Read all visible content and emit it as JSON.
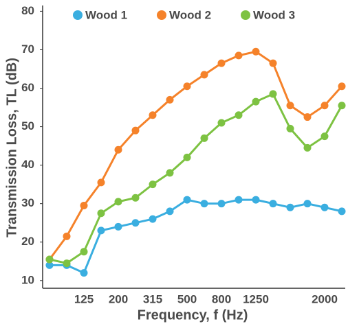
{
  "chart_data": {
    "type": "line",
    "xlabel": "Frequency, f (Hz)",
    "ylabel": "Transmission Loss, TL (dB)",
    "categories": [
      null,
      null,
      "125",
      null,
      "200",
      null,
      "315",
      null,
      "500",
      null,
      "800",
      null,
      "1250",
      null,
      null,
      null,
      "2000",
      null
    ],
    "series": [
      {
        "name": "Wood 1",
        "color": "#3aaee0",
        "values": [
          14,
          14,
          12,
          23,
          24,
          25,
          26,
          28,
          31,
          30,
          30,
          31,
          31,
          30,
          29,
          30,
          29,
          28
        ]
      },
      {
        "name": "Wood 2",
        "color": "#f5822a",
        "values": [
          15.5,
          21.5,
          29.5,
          35.5,
          44,
          49,
          53,
          57,
          60.5,
          63.5,
          66.5,
          68.5,
          69.5,
          66.5,
          55.5,
          52.5,
          55.5,
          60.5
        ]
      },
      {
        "name": "Wood 3",
        "color": "#7dc242",
        "values": [
          15.5,
          14.5,
          17.5,
          27.5,
          30.5,
          31.5,
          35,
          38,
          42,
          47,
          51,
          53,
          56.5,
          58.5,
          49.5,
          44.5,
          47.5,
          55.5
        ]
      }
    ],
    "ylim": [
      8,
      81.5
    ],
    "yticks": [
      10,
      20,
      30,
      40,
      50,
      60,
      70,
      80
    ],
    "grid": false,
    "legend": "top"
  }
}
